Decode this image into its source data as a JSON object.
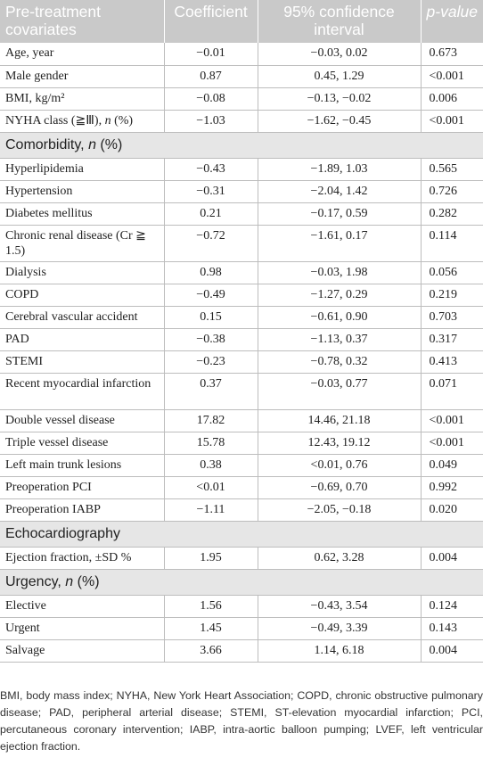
{
  "headers": {
    "col1": "Pre-treatment covariates",
    "col2": "Coefficient",
    "col3": "95% confidence interval",
    "col4": "p-value"
  },
  "rows_a": [
    {
      "label": "Age, year",
      "coef": "−0.01",
      "ci": "−0.03, 0.02",
      "p": "0.673"
    },
    {
      "label": "Male gender",
      "coef": "0.87",
      "ci": "0.45, 1.29",
      "p": "<0.001"
    },
    {
      "label": "BMI, kg/m²",
      "coef": "−0.08",
      "ci": "−0.13, −0.02",
      "p": "0.006"
    },
    {
      "label_pre": "NYHA class (≧Ⅲ), ",
      "label_it": "n",
      "label_post": " (%)",
      "coef": "−1.03",
      "ci": "−1.62, −0.45",
      "p": "<0.001"
    }
  ],
  "section_comorbidity": {
    "pre": "Comorbidity, ",
    "it": "n",
    "post": " (%)"
  },
  "rows_b": [
    {
      "label": "Hyperlipidemia",
      "coef": "−0.43",
      "ci": "−1.89, 1.03",
      "p": "0.565"
    },
    {
      "label": "Hypertension",
      "coef": "−0.31",
      "ci": "−2.04, 1.42",
      "p": "0.726"
    },
    {
      "label": "Diabetes mellitus",
      "coef": "0.21",
      "ci": "−0.17, 0.59",
      "p": "0.282"
    },
    {
      "label": "Chronic renal disease (Cr ≧ 1.5)",
      "coef": "−0.72",
      "ci": "−1.61, 0.17",
      "p": "0.114"
    },
    {
      "label": "Dialysis",
      "coef": "0.98",
      "ci": "−0.03, 1.98",
      "p": "0.056"
    },
    {
      "label": "COPD",
      "coef": "−0.49",
      "ci": "−1.27, 0.29",
      "p": "0.219"
    },
    {
      "label": "Cerebral vascular accident",
      "coef": "0.15",
      "ci": "−0.61, 0.90",
      "p": "0.703"
    },
    {
      "label": "PAD",
      "coef": "−0.38",
      "ci": "−1.13, 0.37",
      "p": "0.317"
    },
    {
      "label": "STEMI",
      "coef": "−0.23",
      "ci": "−0.78, 0.32",
      "p": "0.413"
    },
    {
      "label": "Recent myocardial infarction",
      "coef": "0.37",
      "ci": "−0.03, 0.77",
      "p": "0.071"
    },
    {
      "label": "Double vessel disease",
      "coef": "17.82",
      "ci": "14.46, 21.18",
      "p": "<0.001"
    },
    {
      "label": "Triple vessel disease",
      "coef": "15.78",
      "ci": "12.43, 19.12",
      "p": "<0.001"
    },
    {
      "label": "Left main trunk lesions",
      "coef": "0.38",
      "ci": "<0.01, 0.76",
      "p": "0.049"
    },
    {
      "label": "Preoperation PCI",
      "coef": "<0.01",
      "ci": "−0.69, 0.70",
      "p": "0.992"
    },
    {
      "label": "Preoperation IABP",
      "coef": "−1.11",
      "ci": "−2.05, −0.18",
      "p": "0.020"
    }
  ],
  "section_echo": "Echocardiography",
  "rows_c": [
    {
      "label": "Ejection fraction, ±SD %",
      "coef": "1.95",
      "ci": "0.62, 3.28",
      "p": "0.004"
    }
  ],
  "section_urgency": {
    "pre": "Urgency, ",
    "it": "n",
    "post": " (%)"
  },
  "rows_d": [
    {
      "label": "Elective",
      "coef": "1.56",
      "ci": "−0.43, 3.54",
      "p": "0.124"
    },
    {
      "label": "Urgent",
      "coef": "1.45",
      "ci": "−0.49, 3.39",
      "p": "0.143"
    },
    {
      "label": "Salvage",
      "coef": "3.66",
      "ci": "1.14, 6.18",
      "p": "0.004"
    }
  ],
  "footnote": "BMI, body mass index; NYHA, New York Heart Association; COPD, chronic obstructive pulmonary disease; PAD, peripheral arterial disease; STEMI, ST-elevation myocardial infarction; PCI, percutaneous coronary intervention; IABP, intra-aortic balloon pumping; LVEF, left ventricular ejection fraction."
}
